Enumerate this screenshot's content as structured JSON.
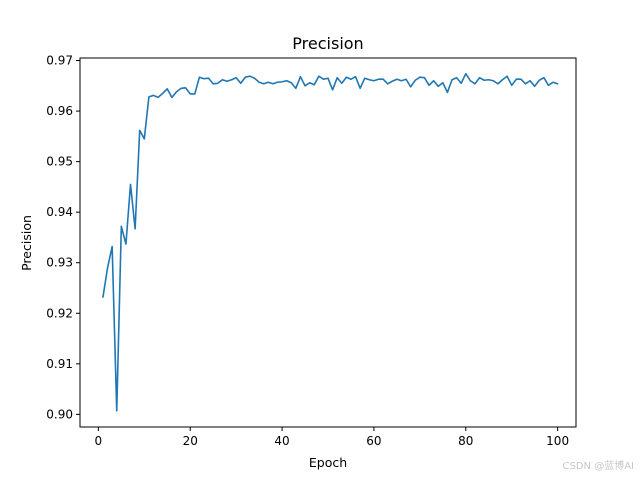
{
  "chart_data": {
    "type": "line",
    "title": "Precision",
    "xlabel": "Epoch",
    "ylabel": "Precision",
    "xlim": [
      -4,
      104
    ],
    "ylim": [
      0.8975,
      0.9705
    ],
    "xticks": [
      0,
      20,
      40,
      60,
      80,
      100
    ],
    "yticks": [
      0.9,
      0.91,
      0.92,
      0.93,
      0.94,
      0.95,
      0.96,
      0.97
    ],
    "xtick_labels": [
      "0",
      "20",
      "40",
      "60",
      "80",
      "100"
    ],
    "ytick_labels": [
      "0.90",
      "0.91",
      "0.92",
      "0.93",
      "0.94",
      "0.95",
      "0.96",
      "0.97"
    ],
    "grid": false,
    "line_color": "#1f77b4",
    "series": [
      {
        "x": [
          1,
          2,
          3,
          4,
          5,
          6,
          7,
          8,
          9,
          10,
          11,
          12,
          13,
          14,
          15,
          16,
          17,
          18,
          19,
          20,
          21,
          22,
          23,
          24,
          25,
          26,
          27,
          28,
          29,
          30,
          31,
          32,
          33,
          34,
          35,
          36,
          37,
          38,
          39,
          40,
          41,
          42,
          43,
          44,
          45,
          46,
          47,
          48,
          49,
          50,
          51,
          52,
          53,
          54,
          55,
          56,
          57,
          58,
          59,
          60,
          61,
          62,
          63,
          64,
          65,
          66,
          67,
          68,
          69,
          70,
          71,
          72,
          73,
          74,
          75,
          76,
          77,
          78,
          79,
          80,
          81,
          82,
          83,
          84,
          85,
          86,
          87,
          88,
          89,
          90,
          91,
          92,
          93,
          94,
          95,
          96,
          97,
          98,
          99,
          100
        ],
        "y": [
          0.9232,
          0.929,
          0.9332,
          0.9007,
          0.9372,
          0.9337,
          0.9455,
          0.9367,
          0.9562,
          0.9545,
          0.9628,
          0.9631,
          0.9627,
          0.9635,
          0.9644,
          0.9627,
          0.9638,
          0.9645,
          0.9646,
          0.9634,
          0.9634,
          0.9667,
          0.9664,
          0.9665,
          0.9654,
          0.9655,
          0.9662,
          0.9659,
          0.9662,
          0.9666,
          0.9655,
          0.9667,
          0.9669,
          0.9665,
          0.9657,
          0.9654,
          0.9657,
          0.9654,
          0.9657,
          0.9658,
          0.966,
          0.9656,
          0.9645,
          0.9668,
          0.965,
          0.9656,
          0.9652,
          0.9669,
          0.9663,
          0.9665,
          0.9642,
          0.9666,
          0.9655,
          0.9667,
          0.9663,
          0.9668,
          0.9645,
          0.9665,
          0.9662,
          0.966,
          0.9663,
          0.9663,
          0.9654,
          0.9659,
          0.9663,
          0.966,
          0.9663,
          0.9648,
          0.9661,
          0.9667,
          0.9666,
          0.9651,
          0.966,
          0.9649,
          0.9656,
          0.9637,
          0.9662,
          0.9666,
          0.9655,
          0.9674,
          0.966,
          0.9654,
          0.9666,
          0.9661,
          0.9662,
          0.966,
          0.9654,
          0.9662,
          0.9669,
          0.9651,
          0.9663,
          0.9663,
          0.9654,
          0.966,
          0.9649,
          0.9661,
          0.9666,
          0.9651,
          0.9657,
          0.9654
        ]
      }
    ]
  },
  "watermark": "CSDN @蓝博AI"
}
